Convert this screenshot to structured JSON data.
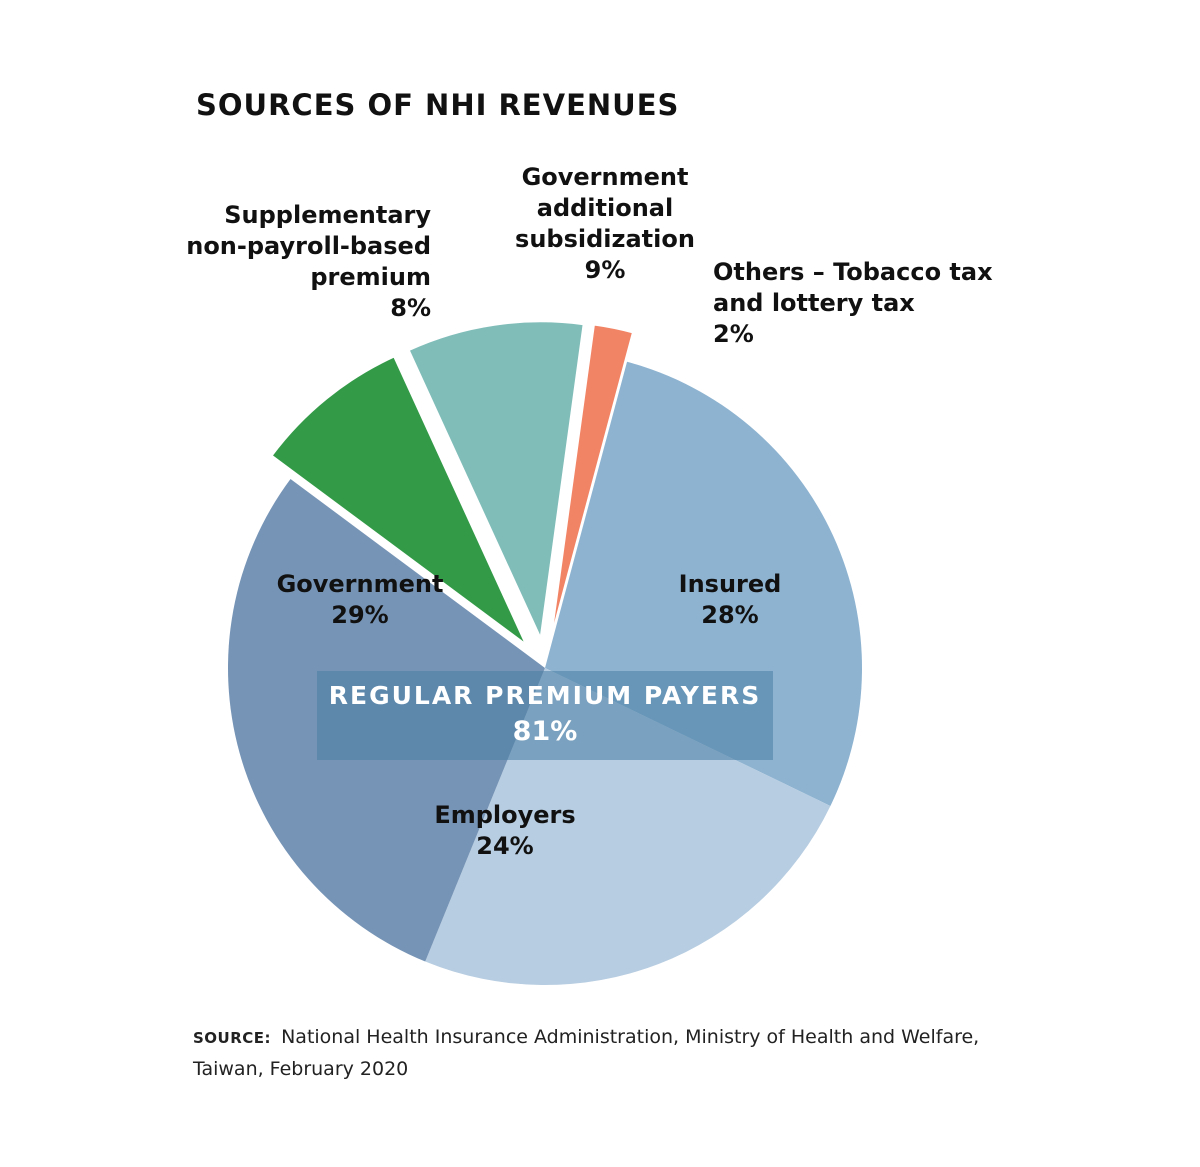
{
  "chart_data": {
    "type": "pie",
    "title": "SOURCES OF NHI REVENUES",
    "slices": [
      {
        "label": "Insured",
        "value": 28,
        "value_label": "28%",
        "color": "#8DB3D1",
        "exploded": false,
        "group": "regular"
      },
      {
        "label": "Employers",
        "value": 24,
        "value_label": "24%",
        "color": "#B7CDE1",
        "exploded": false,
        "group": "regular"
      },
      {
        "label": "Government",
        "value": 29,
        "value_label": "29%",
        "color": "#7694B6",
        "exploded": false,
        "group": "regular"
      },
      {
        "label": "Supplementary non-payroll-based premium",
        "value": 8,
        "value_label": "8%",
        "color": "#339B48",
        "exploded": true,
        "group": null
      },
      {
        "label": "Government additional subsidization",
        "value": 9,
        "value_label": "9%",
        "color": "#80BDB9",
        "exploded": true,
        "group": null
      },
      {
        "label": "Others – Tobacco tax and lottery tax",
        "value": 2,
        "value_label": "2%",
        "color": "#F28466",
        "exploded": true,
        "group": null
      }
    ],
    "group": {
      "label": "REGULAR PREMIUM PAYERS",
      "value": 81,
      "value_label": "81%"
    },
    "label_lines": {
      "insured": [
        "Insured",
        "28%"
      ],
      "employers": [
        "Employers",
        "24%"
      ],
      "government": [
        "Government",
        "29%"
      ],
      "supplementary": [
        "Supplementary",
        "non-payroll-based",
        "premium",
        "8%"
      ],
      "subsidization": [
        "Government",
        "additional",
        "subsidization",
        "9%"
      ],
      "others": [
        "Others – Tobacco tax",
        "and lottery tax",
        "2%"
      ]
    }
  },
  "source": {
    "tag": "SOURCE:",
    "text": "National Health Insurance Administration, Ministry of Health and Welfare, Taiwan, February 2020"
  }
}
